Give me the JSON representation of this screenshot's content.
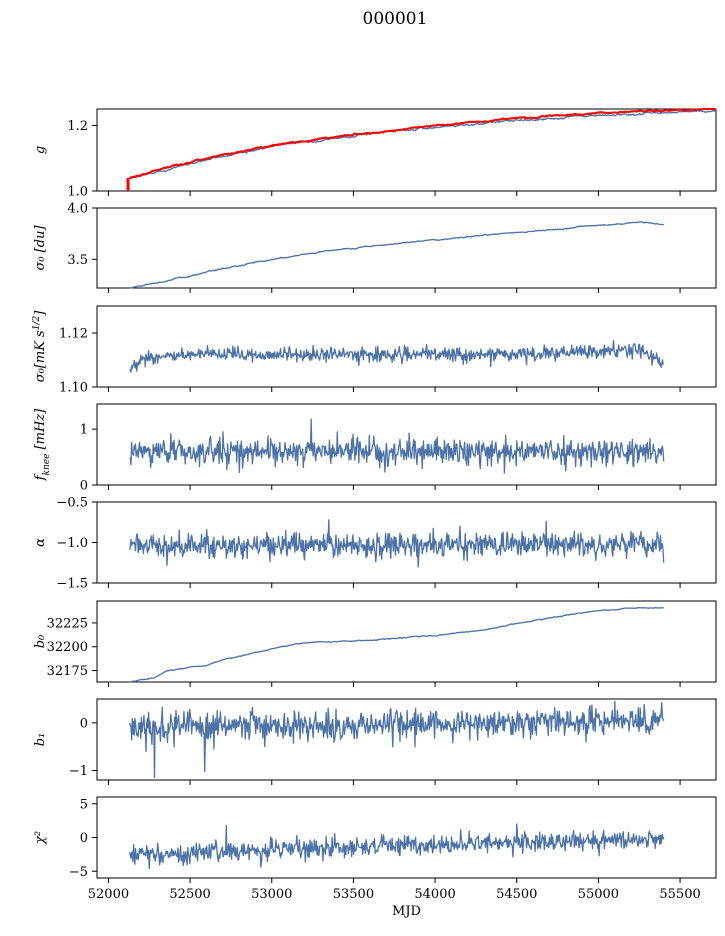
{
  "figure": {
    "title": "000001"
  },
  "colors": {
    "series": "#4c72a8",
    "highlight": "#ff0000"
  },
  "chart_data": [
    {
      "type": "line",
      "ylabel": "g",
      "xlim": [
        51930,
        55720
      ],
      "ylim": [
        1.0,
        1.25
      ],
      "yticks": [
        1.0,
        1.2
      ],
      "yticklabels": [
        "1.0",
        "1.2"
      ],
      "series": [
        {
          "kind": "trend",
          "color_key": "series",
          "x_range": [
            52130,
            55720
          ],
          "points": [
            [
              52130,
              1.035
            ],
            [
              52300,
              1.06
            ],
            [
              52600,
              1.095
            ],
            [
              53000,
              1.137
            ],
            [
              53500,
              1.168
            ],
            [
              54000,
              1.195
            ],
            [
              54500,
              1.215
            ],
            [
              55000,
              1.23
            ],
            [
              55400,
              1.238
            ],
            [
              55720,
              1.245
            ]
          ],
          "noise": 0.002
        },
        {
          "kind": "trend",
          "color_key": "highlight",
          "x_range": [
            52130,
            55720
          ],
          "points": [
            [
              52130,
              1.04
            ],
            [
              52300,
              1.065
            ],
            [
              52600,
              1.1
            ],
            [
              53000,
              1.14
            ],
            [
              53500,
              1.172
            ],
            [
              54000,
              1.199
            ],
            [
              54500,
              1.222
            ],
            [
              55000,
              1.238
            ],
            [
              55400,
              1.245
            ],
            [
              55720,
              1.25
            ]
          ],
          "noise": 0.0015
        },
        {
          "kind": "segment",
          "color_key": "highlight",
          "points": [
            [
              52120,
              1.0
            ],
            [
              52120,
              1.04
            ]
          ]
        }
      ]
    },
    {
      "type": "line",
      "ylabel": "σ₀ [du]",
      "xlim": [
        51930,
        55720
      ],
      "ylim": [
        3.22,
        4.0
      ],
      "yticks": [
        3.5,
        4.0
      ],
      "yticklabels": [
        "3.5",
        "4.0"
      ],
      "series": [
        {
          "kind": "trend",
          "color_key": "series",
          "x_range": [
            52130,
            55400
          ],
          "points": [
            [
              52130,
              3.22
            ],
            [
              52300,
              3.27
            ],
            [
              52500,
              3.34
            ],
            [
              52700,
              3.41
            ],
            [
              53000,
              3.5
            ],
            [
              53300,
              3.57
            ],
            [
              53600,
              3.63
            ],
            [
              54000,
              3.69
            ],
            [
              54500,
              3.76
            ],
            [
              55000,
              3.83
            ],
            [
              55250,
              3.86
            ],
            [
              55400,
              3.84
            ]
          ],
          "noise": 0.004
        }
      ]
    },
    {
      "type": "line",
      "ylabel": "σ₀[mK s^1/2]",
      "xlim": [
        51930,
        55720
      ],
      "ylim": [
        1.1,
        1.13
      ],
      "yticks": [
        1.1,
        1.12
      ],
      "yticklabels": [
        "1.10",
        "1.12"
      ],
      "series": [
        {
          "kind": "noise",
          "color_key": "series",
          "x_range": [
            52130,
            55400
          ],
          "points": [
            [
              52130,
              1.106
            ],
            [
              52220,
              1.111
            ],
            [
              52600,
              1.112
            ],
            [
              53500,
              1.112
            ],
            [
              54500,
              1.112
            ],
            [
              55000,
              1.113
            ],
            [
              55250,
              1.114
            ],
            [
              55330,
              1.111
            ],
            [
              55400,
              1.108
            ]
          ],
          "noise": 0.0013
        }
      ]
    },
    {
      "type": "line",
      "ylabel": "f_knee [mHz]",
      "xlim": [
        51930,
        55720
      ],
      "ylim": [
        0,
        1.45
      ],
      "yticks": [
        0,
        1
      ],
      "yticklabels": [
        "0",
        "1"
      ],
      "series": [
        {
          "kind": "noise",
          "color_key": "series",
          "x_range": [
            52130,
            55400
          ],
          "points": [
            [
              52130,
              0.6
            ],
            [
              55400,
              0.6
            ]
          ],
          "noise": 0.11,
          "spikes": [
            [
              53240,
              1.18
            ],
            [
              52380,
              0.92
            ],
            [
              52620,
              0.85
            ],
            [
              53400,
              0.95
            ],
            [
              52700,
              0.95
            ]
          ]
        }
      ]
    },
    {
      "type": "line",
      "ylabel": "α",
      "xlim": [
        51930,
        55720
      ],
      "ylim": [
        -1.5,
        -0.5
      ],
      "yticks": [
        -1.5,
        -1.0,
        -0.5
      ],
      "yticklabels": [
        "−1.5",
        "−1.0",
        "−0.5"
      ],
      "series": [
        {
          "kind": "noise",
          "color_key": "series",
          "x_range": [
            52130,
            55400
          ],
          "points": [
            [
              52130,
              -1.04
            ],
            [
              55400,
              -1.02
            ]
          ],
          "noise": 0.075,
          "spikes": [
            [
              53350,
              -0.72
            ],
            [
              54680,
              -0.74
            ],
            [
              55400,
              -1.25
            ]
          ]
        }
      ]
    },
    {
      "type": "line",
      "ylabel": "b₀",
      "xlim": [
        51930,
        55720
      ],
      "ylim": [
        32163,
        32248
      ],
      "yticks": [
        32175,
        32200,
        32225
      ],
      "yticklabels": [
        "32175",
        "32200",
        "32225"
      ],
      "series": [
        {
          "kind": "trend",
          "color_key": "series",
          "x_range": [
            52130,
            55400
          ],
          "points": [
            [
              52130,
              32163
            ],
            [
              52280,
              32167
            ],
            [
              52360,
              32175
            ],
            [
              52500,
              32178
            ],
            [
              52600,
              32180
            ],
            [
              52650,
              32184
            ],
            [
              52800,
              32190
            ],
            [
              53000,
              32198
            ],
            [
              53200,
              32204
            ],
            [
              53600,
              32207
            ],
            [
              54000,
              32212
            ],
            [
              54300,
              32218
            ],
            [
              54550,
              32226
            ],
            [
              54800,
              32233
            ],
            [
              55000,
              32238
            ],
            [
              55200,
              32240
            ],
            [
              55300,
              32241
            ],
            [
              55400,
              32241
            ]
          ],
          "noise": 0.35
        }
      ]
    },
    {
      "type": "line",
      "ylabel": "b₁",
      "xlim": [
        51930,
        55720
      ],
      "ylim": [
        -1.2,
        0.5
      ],
      "yticks": [
        -1,
        0
      ],
      "yticklabels": [
        "−1",
        "0"
      ],
      "series": [
        {
          "kind": "noise",
          "color_key": "series",
          "x_range": [
            52130,
            55400
          ],
          "points": [
            [
              52130,
              -0.1
            ],
            [
              55400,
              0.05
            ]
          ],
          "noise": 0.15,
          "spikes": [
            [
              52280,
              -1.15
            ],
            [
              52590,
              -1.02
            ],
            [
              52230,
              -0.6
            ],
            [
              55100,
              0.45
            ]
          ]
        }
      ]
    },
    {
      "type": "line",
      "ylabel": "χ²",
      "xlim": [
        51930,
        55720
      ],
      "ylim": [
        -6,
        6
      ],
      "yticks": [
        -5,
        0,
        5
      ],
      "yticklabels": [
        "−5",
        "0",
        "5"
      ],
      "xticks": [
        52000,
        52500,
        53000,
        53500,
        54000,
        54500,
        55000,
        55500
      ],
      "xticklabels": [
        "52000",
        "52500",
        "53000",
        "53500",
        "54000",
        "54500",
        "55000",
        "55500"
      ],
      "xlabel": "MJD",
      "series": [
        {
          "kind": "noise",
          "color_key": "series",
          "x_range": [
            52130,
            55400
          ],
          "points": [
            [
              52130,
              -2.2
            ],
            [
              52500,
              -2.5
            ],
            [
              53000,
              -1.8
            ],
            [
              54000,
              -1.0
            ],
            [
              55000,
              -0.5
            ],
            [
              55400,
              -0.2
            ]
          ],
          "noise": 0.7,
          "spikes": [
            [
              52250,
              -4.6
            ],
            [
              52720,
              1.8
            ],
            [
              54500,
              2.0
            ]
          ]
        }
      ]
    }
  ]
}
